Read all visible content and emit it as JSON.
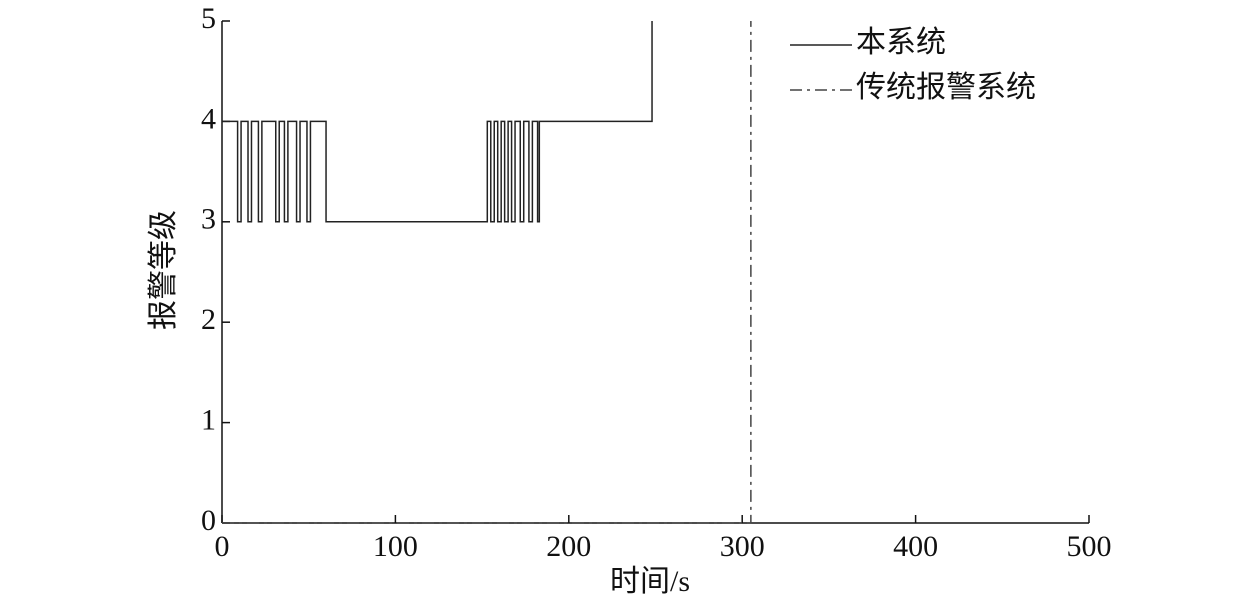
{
  "chart_data": {
    "type": "line",
    "xlabel": "时间/s",
    "ylabel": "报警等级",
    "xlim": [
      0,
      500
    ],
    "xticks": [
      0,
      100,
      200,
      300,
      400,
      500
    ],
    "ylim": [
      0,
      5
    ],
    "yticks": [
      0,
      1,
      2,
      3,
      4,
      5
    ],
    "legend": "upper right",
    "series": [
      {
        "name": "本系统",
        "color": "#222222",
        "style": "solid",
        "x": [
          0,
          9,
          9,
          11,
          11,
          15,
          15,
          17,
          17,
          21,
          21,
          23,
          23,
          31,
          31,
          33,
          33,
          36,
          36,
          38,
          38,
          43,
          43,
          45,
          45,
          49,
          49,
          51,
          51,
          60,
          60,
          153,
          153,
          155,
          155,
          157,
          157,
          159,
          159,
          161,
          161,
          163,
          163,
          165,
          165,
          167,
          167,
          169,
          169,
          172,
          172,
          174,
          174,
          177,
          177,
          179,
          179,
          182,
          182,
          183,
          183,
          248,
          248
        ],
        "values": [
          4,
          4,
          3,
          3,
          4,
          4,
          3,
          3,
          4,
          4,
          3,
          3,
          4,
          4,
          3,
          3,
          4,
          4,
          3,
          3,
          4,
          4,
          3,
          3,
          4,
          4,
          3,
          3,
          4,
          4,
          3,
          3,
          4,
          4,
          3,
          3,
          4,
          4,
          3,
          3,
          4,
          4,
          3,
          3,
          4,
          4,
          3,
          3,
          4,
          4,
          3,
          3,
          4,
          4,
          3,
          3,
          4,
          4,
          3,
          3,
          4,
          4,
          5
        ]
      },
      {
        "name": "传统报警系统",
        "color": "#444444",
        "style": "dashdot",
        "x": [
          0,
          305,
          305
        ],
        "values": [
          0,
          0,
          5
        ]
      }
    ]
  }
}
